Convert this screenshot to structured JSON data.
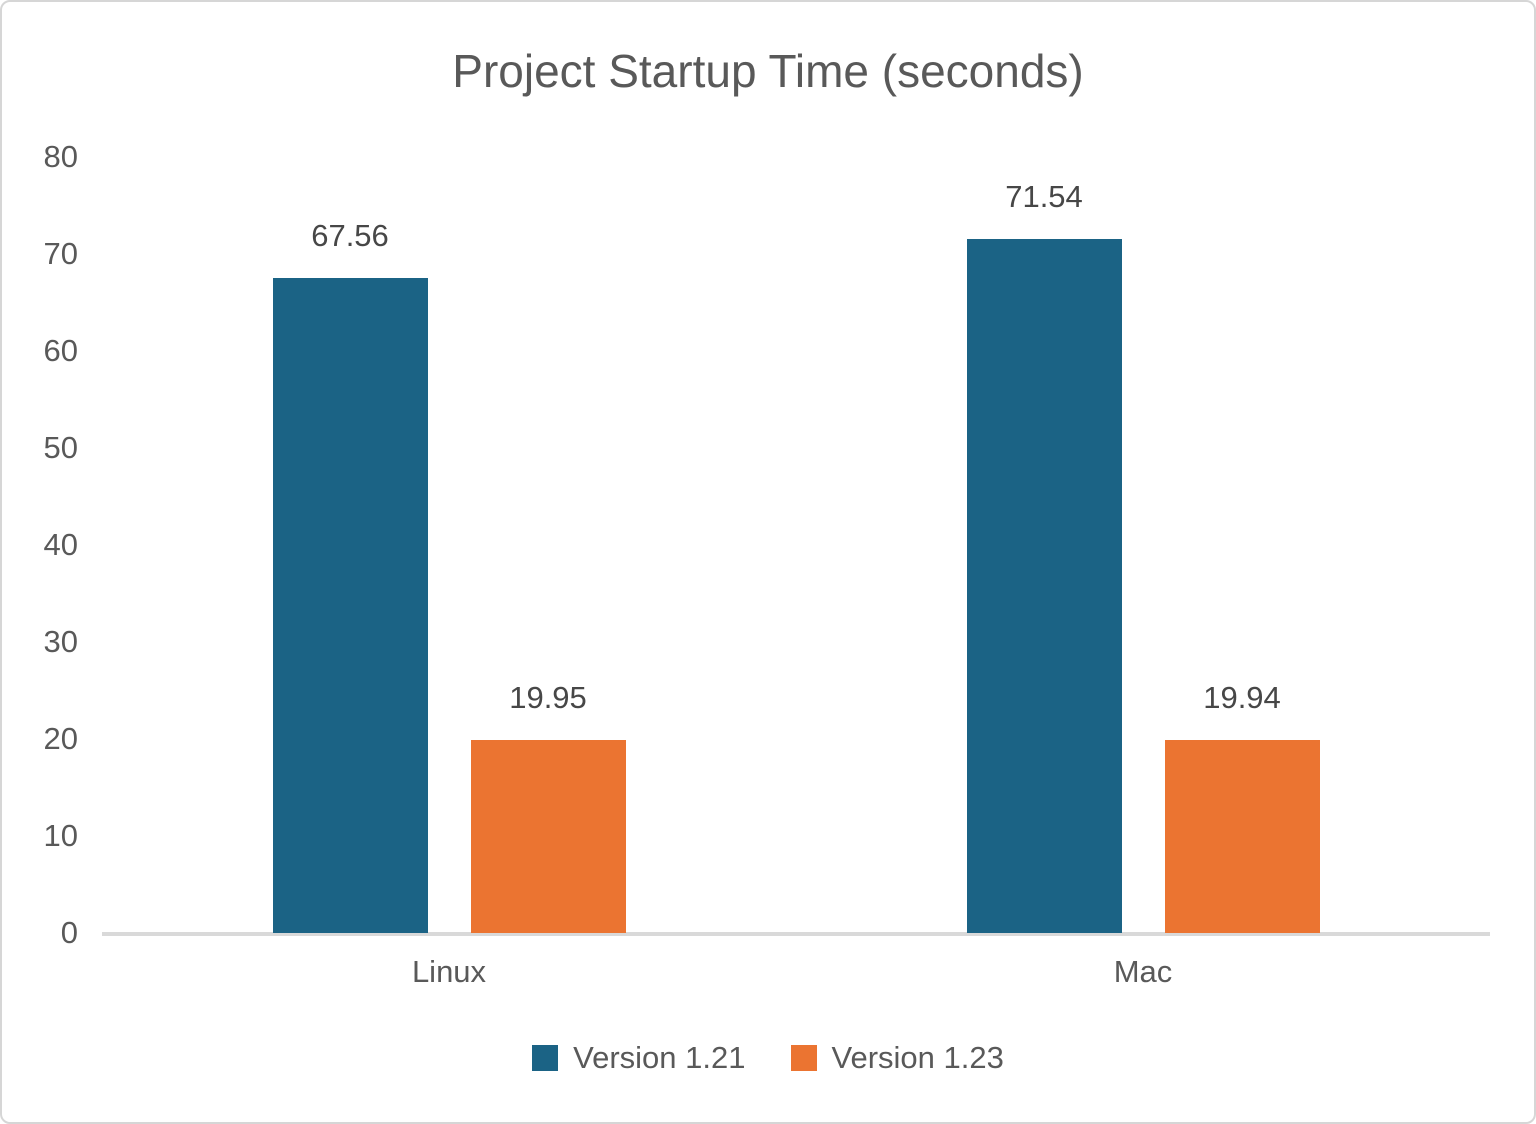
{
  "chart_data": {
    "type": "bar",
    "title": "Project Startup Time (seconds)",
    "categories": [
      "Linux",
      "Mac"
    ],
    "series": [
      {
        "name": "Version 1.21",
        "color": "#1B6385",
        "values": [
          67.56,
          71.54
        ]
      },
      {
        "name": "Version 1.23",
        "color": "#EB7431",
        "values": [
          19.95,
          19.94
        ]
      }
    ],
    "value_labels": [
      [
        "67.56",
        "19.95"
      ],
      [
        "71.54",
        "19.94"
      ]
    ],
    "ylim": [
      0,
      80
    ],
    "yticks": [
      80,
      70,
      60,
      50,
      40,
      30,
      20,
      10,
      0
    ],
    "grid": false,
    "legend_position": "bottom",
    "axis_line_color": "#D9D9D9",
    "text_color": "#595959",
    "value_label_color": "#474747"
  }
}
